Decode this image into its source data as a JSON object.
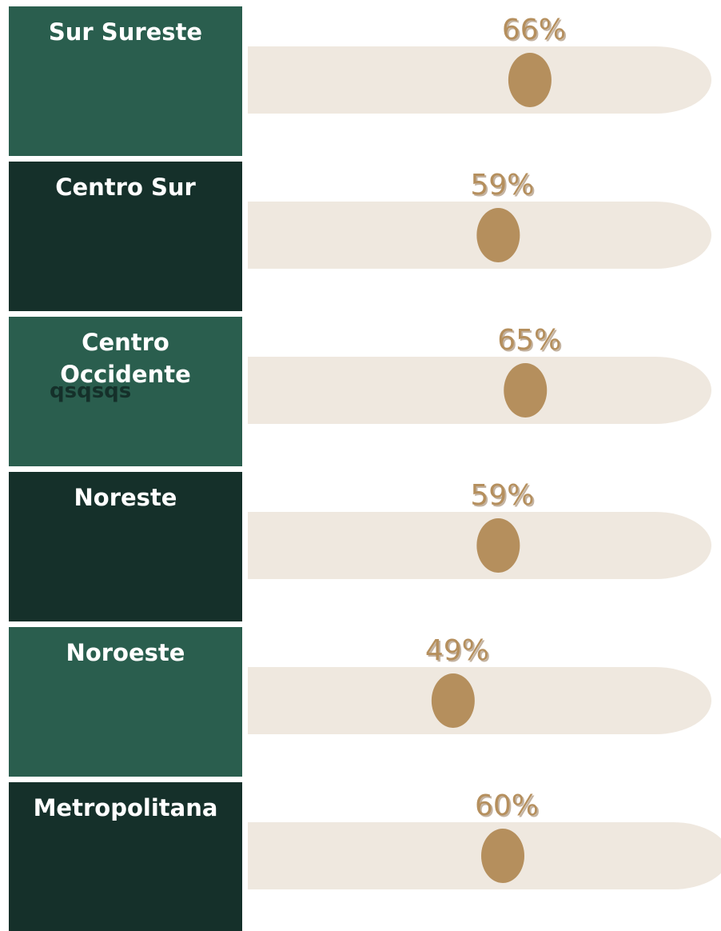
{
  "chart_data": {
    "type": "dot",
    "categories": [
      "Sur Sureste",
      "Centro Sur",
      "Centro Occidente",
      "Noreste",
      "Noroeste",
      "Metropolitana"
    ],
    "values": [
      66,
      59,
      65,
      59,
      49,
      60
    ],
    "value_labels": [
      "66%",
      "59%",
      "65%",
      "59%",
      "49%",
      "60%"
    ],
    "annotation": "qsqsqs",
    "xlim": [
      0,
      100
    ],
    "tile_colors": [
      "#2a5e4e",
      "#15302a"
    ],
    "track_color": "#efe8df",
    "color": "#b58f5d"
  }
}
